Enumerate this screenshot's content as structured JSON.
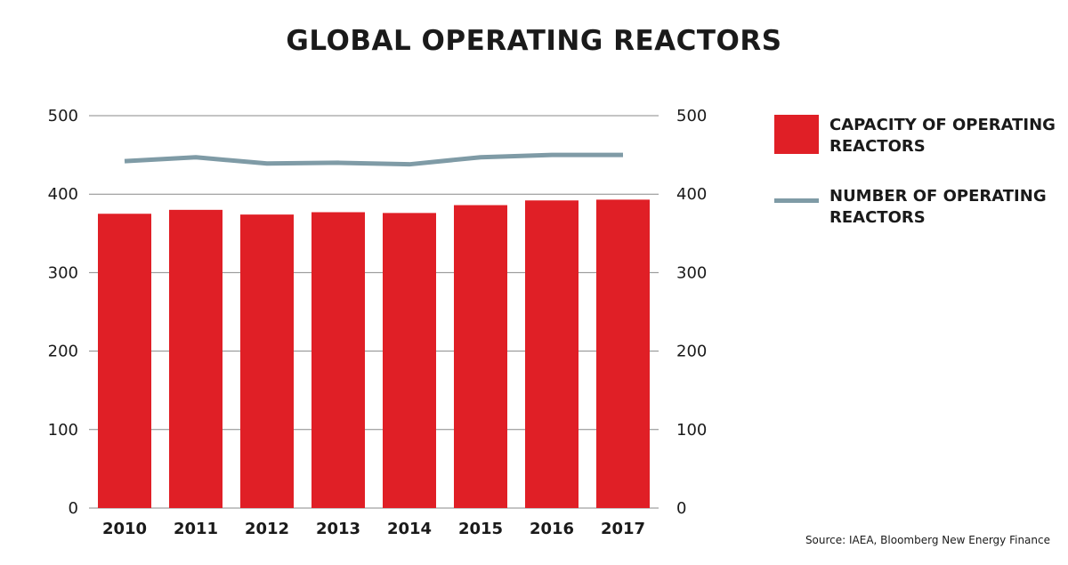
{
  "chart_data": {
    "type": "bar",
    "title": "GLOBAL OPERATING REACTORS",
    "categories": [
      "2010",
      "2011",
      "2012",
      "2013",
      "2014",
      "2015",
      "2016",
      "2017"
    ],
    "series": [
      {
        "name": "CAPACITY OF OPERATING REACTORS",
        "type": "bar",
        "values": [
          375,
          380,
          374,
          377,
          376,
          386,
          392,
          393
        ],
        "color": "#e01f26"
      },
      {
        "name": "NUMBER OF OPERATING REACTORS",
        "type": "line",
        "values": [
          442,
          447,
          439,
          440,
          438,
          447,
          450,
          450
        ],
        "color": "#7f9ba6"
      }
    ],
    "ylim": [
      0,
      500
    ],
    "yticks": [
      "0",
      "100",
      "200",
      "300",
      "400",
      "500"
    ],
    "y2ticks": [
      "0",
      "100",
      "200",
      "300",
      "400",
      "500"
    ],
    "grid": true,
    "legend_position": "right",
    "source": "Source: IAEA, Bloomberg New Energy Finance"
  }
}
